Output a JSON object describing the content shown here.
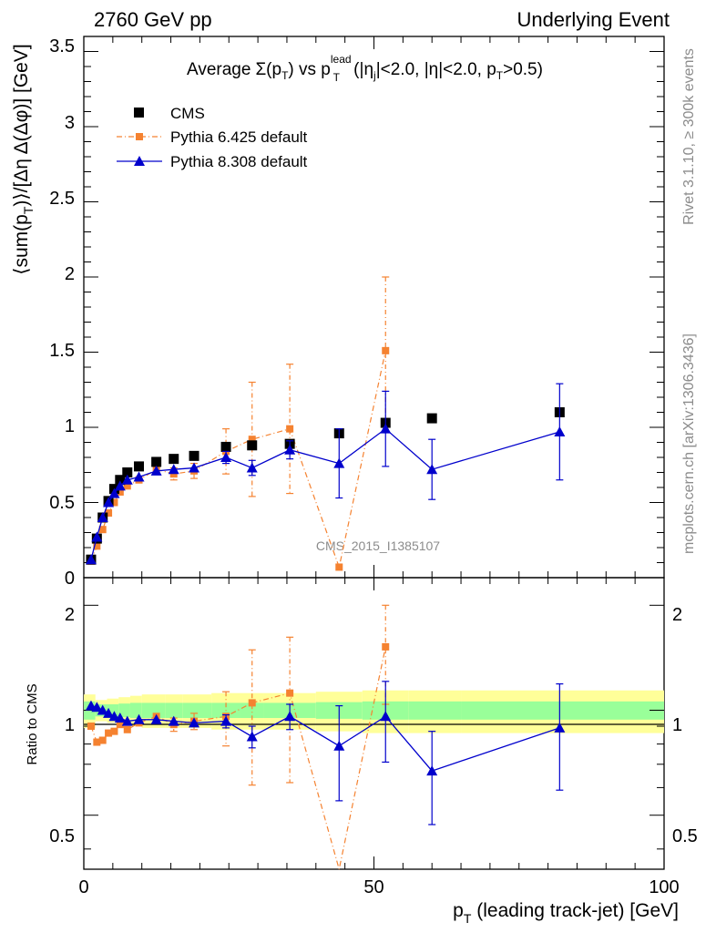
{
  "header": {
    "energy": "2760 GeV pp",
    "category": "Underlying Event"
  },
  "title": {
    "main": "Average",
    "sigma": "Σ(p",
    "sub_t": "T",
    "close": ")",
    "vs": " vs p",
    "sup_lead": "lead",
    "sub_T2": "T",
    "cuts_a": " (|η",
    "sub_j": "j",
    "cuts_b": "|<2.0, |η|<2.0, p",
    "sub_T3": "T",
    "cuts_c": ">0.5)"
  },
  "side_labels": {
    "rivet": "Rivet 3.1.10, ≥ 300k events",
    "mcplots": "mcplots.cern.ch [arXiv:1306.3436]"
  },
  "watermark": "CMS_2015_I1385107",
  "axes": {
    "ylabel_main": "⟨sum(p",
    "ylabel_main_sub": "T",
    "ylabel_main_rest": ")⟩/[Δη Δ(Δφ)] [GeV]",
    "ylabel_ratio": "Ratio to CMS",
    "xlabel": "p",
    "xlabel_sub": "T",
    "xlabel_rest": " (leading track-jet) [GeV]",
    "x_ticks": [
      "0",
      "50",
      "100"
    ],
    "y_ticks_main": [
      "0",
      "0.5",
      "1",
      "1.5",
      "2",
      "2.5",
      "3",
      "3.5"
    ],
    "y_ticks_ratio": [
      "0.5",
      "1",
      "2"
    ]
  },
  "legend": {
    "cms": "CMS",
    "py6": "Pythia 6.425 default",
    "py8": "Pythia 8.308 default"
  },
  "colors": {
    "cms": "#000000",
    "py6": "#f58230",
    "py8": "#0000cc",
    "band_inner": "#99ff99",
    "band_outer": "#ffff99"
  },
  "chart_data": {
    "type": "scatter",
    "xlabel": "p_T (leading track-jet) [GeV]",
    "ylabel": "⟨sum(p_T)⟩/[Δη Δ(Δφ)] [GeV]",
    "xlim": [
      0,
      100
    ],
    "ylim": [
      0,
      3.6
    ],
    "ratio_ylim": [
      0.35,
      2.4
    ],
    "ratio_ylabel": "Ratio to CMS",
    "series": [
      {
        "name": "CMS",
        "x": [
          1.25,
          2.25,
          3.25,
          4.25,
          5.25,
          6.25,
          7.5,
          9.5,
          12.5,
          15.5,
          19,
          24.5,
          29,
          35.5,
          44,
          52,
          60,
          82
        ],
        "y": [
          0.12,
          0.26,
          0.4,
          0.51,
          0.59,
          0.65,
          0.7,
          0.74,
          0.77,
          0.79,
          0.81,
          0.87,
          0.88,
          0.89,
          0.96,
          1.03,
          1.06,
          1.1
        ]
      },
      {
        "name": "Pythia 6.425 default",
        "x": [
          1.25,
          2.25,
          3.25,
          4.25,
          5.25,
          6.25,
          7.5,
          9.5,
          12.5,
          15.5,
          19,
          24.5,
          29,
          35.5,
          44,
          52
        ],
        "y": [
          0.11,
          0.21,
          0.32,
          0.43,
          0.5,
          0.57,
          0.61,
          0.65,
          0.72,
          0.69,
          0.71,
          0.84,
          0.92,
          0.99,
          0.07,
          1.51
        ],
        "yerr": [
          0,
          0,
          0,
          0,
          0.01,
          0.01,
          0.02,
          0.02,
          0.03,
          0.04,
          0.05,
          0.15,
          0.38,
          0.43,
          0,
          0.49
        ],
        "ratio": [
          0.9,
          0.81,
          0.82,
          0.86,
          0.87,
          0.91,
          0.88,
          0.92,
          0.96,
          0.91,
          0.93,
          0.96,
          1.05,
          1.12,
          0.07,
          1.52
        ],
        "ratio_err": [
          0,
          0,
          0,
          0,
          0.01,
          0.02,
          0.02,
          0.03,
          0.03,
          0.04,
          0.05,
          0.17,
          0.44,
          0.5,
          0,
          0.48
        ]
      },
      {
        "name": "Pythia 8.308 default",
        "x": [
          1.25,
          2.25,
          3.25,
          4.25,
          5.25,
          6.25,
          7.5,
          9.5,
          12.5,
          15.5,
          19,
          24.5,
          29,
          35.5,
          44,
          52,
          60,
          82
        ],
        "y": [
          0.12,
          0.27,
          0.4,
          0.5,
          0.56,
          0.61,
          0.65,
          0.67,
          0.71,
          0.72,
          0.73,
          0.8,
          0.73,
          0.85,
          0.76,
          0.99,
          0.72,
          0.97
        ],
        "yerr": [
          0,
          0,
          0,
          0,
          0.01,
          0.01,
          0.01,
          0.01,
          0.02,
          0.02,
          0.03,
          0.04,
          0.05,
          0.06,
          0.23,
          0.25,
          0.2,
          0.32
        ],
        "ratio": [
          1.03,
          1.02,
          1.0,
          0.98,
          0.96,
          0.95,
          0.93,
          0.94,
          0.94,
          0.93,
          0.92,
          0.93,
          0.84,
          0.96,
          0.79,
          0.96,
          0.67,
          0.89
        ],
        "ratio_err": [
          0,
          0,
          0,
          0,
          0.01,
          0.01,
          0.01,
          0.01,
          0.02,
          0.02,
          0.03,
          0.04,
          0.06,
          0.08,
          0.24,
          0.25,
          0.2,
          0.3
        ]
      }
    ],
    "ratio_band": {
      "x_edges": [
        0,
        2,
        4,
        6,
        8,
        10,
        14,
        17,
        22,
        27,
        31,
        40,
        48,
        56,
        65,
        100
      ],
      "inner": [
        0.06,
        0.04,
        0.04,
        0.045,
        0.05,
        0.05,
        0.05,
        0.05,
        0.05,
        0.05,
        0.05,
        0.055,
        0.06,
        0.06,
        0.06
      ],
      "outer": [
        0.11,
        0.07,
        0.08,
        0.09,
        0.1,
        0.11,
        0.11,
        0.11,
        0.12,
        0.12,
        0.12,
        0.13,
        0.14,
        0.14,
        0.14
      ]
    }
  }
}
